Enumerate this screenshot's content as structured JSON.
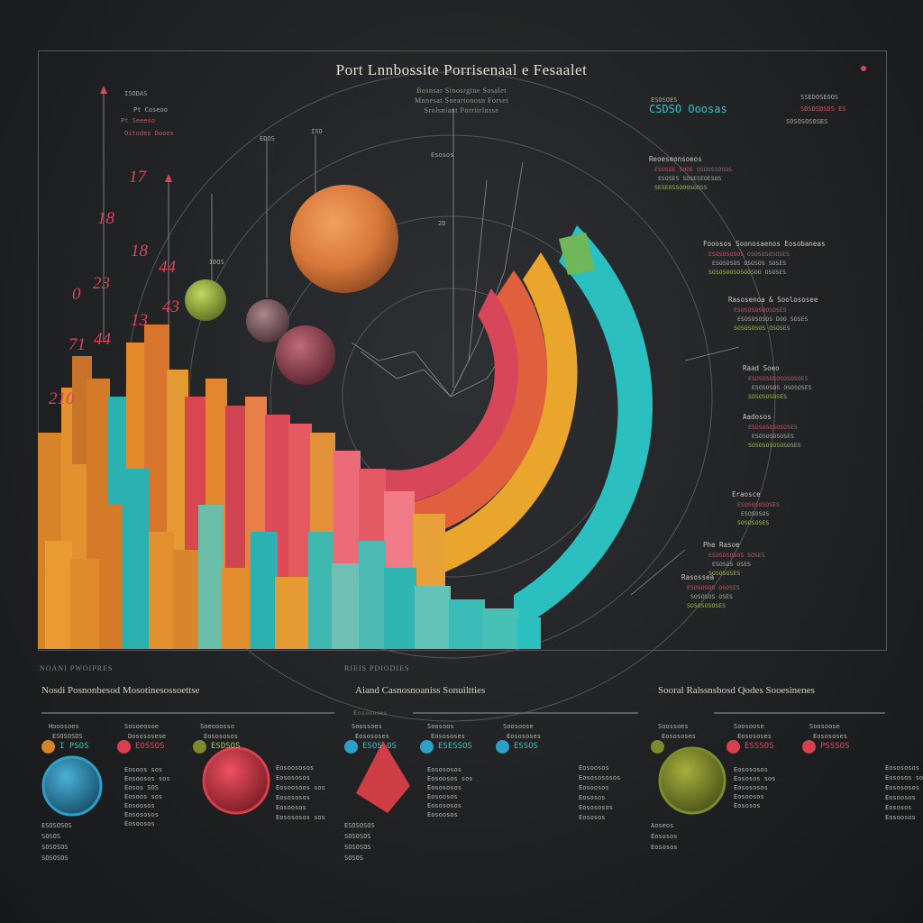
{
  "header": {
    "title": "Port Lnnbossite Porrisenaal e Fesaalet",
    "subtitle_lines": [
      "Bosnsar Sinosrgtne Sosalet",
      "Mnnesat Soeartonosn Forset",
      "Srolsniant Porritrlnsse"
    ]
  },
  "left_axis_numbers": [
    "17",
    "18",
    "18",
    "44",
    "23",
    "0",
    "43",
    "13",
    "44",
    "71",
    "210"
  ],
  "left_axis_labels": [
    "ISODAS",
    "Pt Coseoo",
    "Pt Seeeso",
    "Oitodes Dooes",
    "EDOS",
    "ISO",
    "IDOS",
    "Esosos",
    "2D"
  ],
  "top_right": {
    "highlight": "CSDSO Ooosas",
    "side_lines": [
      "ESOSOES",
      "SSEDOSEOOS",
      "SDSDSDSDS ES",
      "SOSOSOSOSES"
    ]
  },
  "right_blocks": [
    {
      "title": "Reoeseonsoeos",
      "lines": [
        "ESOSOE SODE OSOOSSOSOS",
        "ESOSES SOSESEOESOS",
        "SESEOSSOOOSOOSS"
      ]
    },
    {
      "title": "Fooosos Soonosaenos Eosobaneas",
      "lines": [
        "ESOSOSOSOS OSOSOSOSOSES",
        "ESOSOSOS OSOSOS SOSES",
        "SOSOSOOSOSOOSOO OSOSES"
      ]
    },
    {
      "title": "Rasosenoa & Soolososee",
      "lines": [
        "ESOSOSOSOOSOSES",
        "ESOSOSOSOS DOO SOSES",
        "SOSOSOSOS OSOSES"
      ]
    },
    {
      "title": "Raad Soeo",
      "lines": [
        "ESOSOSOSOSOSOSOES",
        "ESOSOSOS OSOSOSES",
        "SOSOSOSOSES"
      ]
    },
    {
      "title": "Aadosos",
      "lines": [
        "ESOSOSOSOSOSES",
        "ESOSOSOSOSES",
        "SOSOSOSOSOSOSES"
      ]
    },
    {
      "title": "Eraosce",
      "lines": [
        "ESOSOSOSOSES",
        "ESOSOSOS",
        "SOSOSOSES"
      ]
    },
    {
      "title": "Phe Rasoe",
      "lines": [
        "ESOSOSOSOS SOSES",
        "ESOSOS OSES",
        "SOSOSOSES"
      ]
    },
    {
      "title": "Rasossea",
      "lines": [
        "ESOSOSOS OSOSES",
        "SOSOSOS OSES",
        "SOSOSOSOSES"
      ]
    }
  ],
  "bottom": {
    "sections": [
      {
        "small": "NOANI PWOIPRES",
        "title": "Nosdi Posnonbesod Mosotinesossoettse",
        "cols": [
          {
            "head": "Hooosoes",
            "sub": "ESOSOSOS",
            "value": "I PSOS"
          },
          {
            "head": "Sosoeosoe",
            "sub": "Dosososese",
            "value": "EOSSOS"
          },
          {
            "head": "Soeooosso",
            "sub": "Eosososos",
            "value": "ESDSOS"
          }
        ],
        "list_a": [
          "ESOSOSOS",
          "SOSOS",
          "SOSOSOS",
          "SOSOSOS"
        ],
        "list_b": [
          "Eosoos sos",
          "Eosoosos sos",
          "Eosos SOS",
          "Eosoos sos",
          "Eosoosos",
          "Eosososos",
          "Eosoosos"
        ],
        "list_c": [
          "Eosoososos",
          "Eosososos",
          "Eosoosoos sos",
          "Eosososos",
          "Eosoosos",
          "Eosososos sos"
        ]
      },
      {
        "small": "RIEIS PDIODIES",
        "title": "Aiand Casnosnoaniss Sonuiltties",
        "cols": [
          {
            "head": "Soossoes",
            "sub": "Eosososes",
            "value": "ESOS OS"
          },
          {
            "head": "Soosoos",
            "sub": "Eosososes",
            "value": "ESESSOS"
          },
          {
            "head": "Soosoose",
            "sub": "Eosososes",
            "value": "ESSOS"
          }
        ],
        "list_a": [
          "ESOSOSOS",
          "SOSOSOS",
          "SOSOSOS",
          "SOSOS"
        ],
        "list_b": [
          "Eosososos",
          "Eosoosos sos",
          "Eosososos",
          "Eosoosos",
          "Eosososos",
          "Eosoosos"
        ],
        "list_c": [
          "Eosoosos",
          "Eososososos",
          "Eosoosos",
          "Eososos",
          "Eosososos",
          "Eososos"
        ]
      },
      {
        "small": "",
        "title": "Sooral Ralssnsbosd Qodes Sooesinenes",
        "cols": [
          {
            "head": "Soossoes",
            "sub": "Eosososes",
            "value": ""
          },
          {
            "head": "Soosoose",
            "sub": "Eosososes",
            "value": "ESSSOS"
          },
          {
            "head": "Soosoose",
            "sub": "Eosososes",
            "value": "PSSSOS"
          }
        ],
        "list_a": [
          "Aoseos",
          "Eososos",
          "Eososos"
        ],
        "list_b": [
          "Eosososos",
          "Eososos sos",
          "Eosososos",
          "Eosoosos",
          "Eososos"
        ],
        "list_c": [
          "Eosososos",
          "Eososos sos",
          "Eosososos",
          "Eosoosos",
          "Eososos",
          "Eosoosos"
        ]
      }
    ]
  },
  "colors": {
    "teal": "#2bbfbf",
    "orange": "#e0882a",
    "red": "#d44a55",
    "yellow": "#e9a52c",
    "olive": "#7f8a2b",
    "background": "#222426"
  }
}
